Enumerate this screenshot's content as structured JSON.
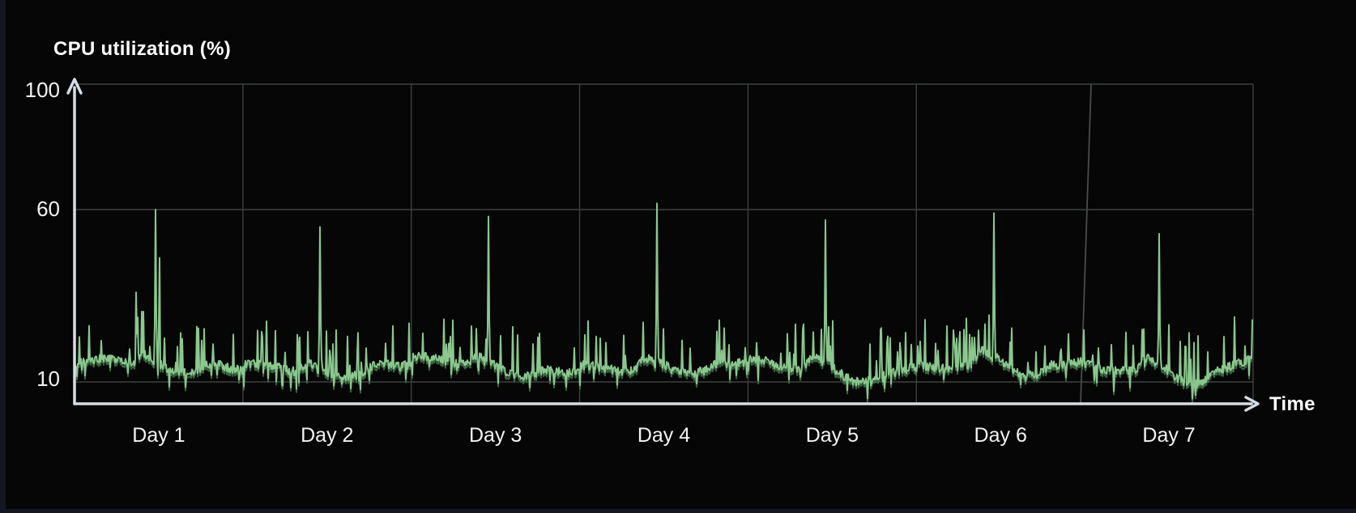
{
  "page": {
    "background_color": "#121722",
    "panel_color": "#060606"
  },
  "chart": {
    "title": "CPU utilization (%)",
    "x_axis_label": "Time",
    "y_tick_labels": [
      "100",
      "60",
      "10"
    ],
    "colors": {
      "line": "#8bc78e",
      "line_shadow": "#42764b",
      "grid": "#3d423e",
      "grid_slant": "#4b504c",
      "axis": "#d7dde5",
      "text": "#ffffff"
    }
  },
  "chart_data": {
    "type": "line",
    "title": "CPU utilization (%)",
    "xlabel": "Time",
    "ylabel": "CPU utilization (%)",
    "categories": [
      "Day 1",
      "Day 2",
      "Day 3",
      "Day 4",
      "Day 5",
      "Day 6",
      "Day 7"
    ],
    "y_ticks": [
      100,
      60,
      10
    ],
    "ylim": [
      5,
      100
    ],
    "grid": {
      "vertical": "one line per day boundary (Day6/Day7 line slightly slanted)",
      "horizontal_at": [
        10,
        60,
        100
      ]
    },
    "legend": "none",
    "axis_style": "white arrows up (y) and right (x)",
    "series": [
      {
        "name": "CPU utilization",
        "unit": "%",
        "baseline_typical_pct": 15,
        "baseline_range_pct": [
          10,
          22
        ],
        "noise_needle_peaks_pct": [
          24,
          32
        ],
        "post_peak_dip_pct": 11,
        "daily_peaks_pct": [
          60,
          55,
          58,
          62,
          57,
          59,
          53
        ],
        "daily_peak_position_fraction": [
          0.48,
          0.46,
          0.46,
          0.46,
          0.46,
          0.46,
          0.44
        ],
        "day1_secondary_spikes_pct": [
          36,
          46
        ]
      }
    ]
  }
}
